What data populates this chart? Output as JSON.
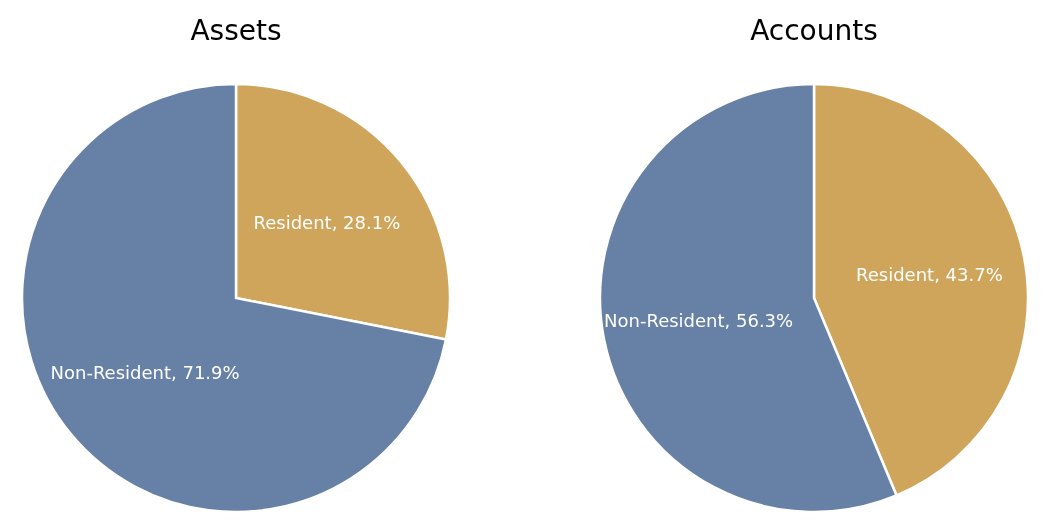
{
  "chart_data": [
    {
      "type": "pie",
      "title": "Assets",
      "categories": [
        "Resident",
        "Non-Resident"
      ],
      "values": [
        28.1,
        71.9
      ],
      "colors": [
        "#cfa55c",
        "#6780a5"
      ],
      "value_labels": [
        "28.1%",
        "71.9%"
      ]
    },
    {
      "type": "pie",
      "title": "Accounts",
      "categories": [
        "Resident",
        "Non-Resident"
      ],
      "values": [
        43.7,
        56.3
      ],
      "colors": [
        "#cfa55c",
        "#6780a5"
      ],
      "value_labels": [
        "43.7%",
        "56.3%"
      ]
    }
  ]
}
